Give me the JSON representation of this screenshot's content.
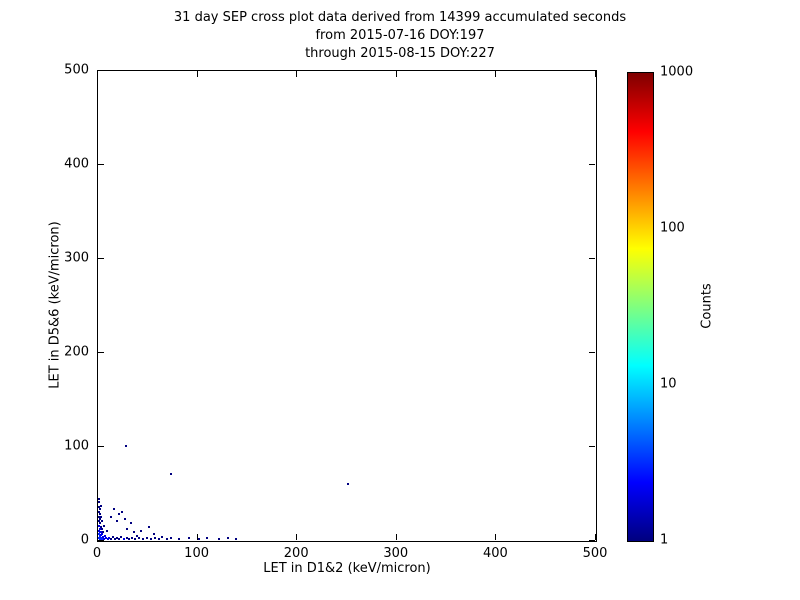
{
  "chart_data": {
    "type": "scatter",
    "titles": [
      "31 day SEP cross plot data derived from 14399 accumulated seconds",
      "from 2015-07-16 DOY:197",
      "through 2015-08-15 DOY:227"
    ],
    "xlabel": "LET in D1&2 (keV/micron)",
    "ylabel": "LET in D5&6 (keV/micron)",
    "xlim": [
      0,
      500
    ],
    "ylim": [
      0,
      500
    ],
    "x_ticks": [
      0,
      100,
      200,
      300,
      400,
      500
    ],
    "y_ticks": [
      0,
      100,
      200,
      300,
      400,
      500
    ],
    "grid": false,
    "legend": "none",
    "colorbar": {
      "label": "Counts",
      "scale": "log",
      "min": 1,
      "max": 1000,
      "ticks": [
        1000,
        100,
        10,
        1
      ],
      "colormap": "jet",
      "stops": [
        {
          "pos": 0.0,
          "color": "#00007f"
        },
        {
          "pos": 0.125,
          "color": "#0000ff"
        },
        {
          "pos": 0.375,
          "color": "#00ffff"
        },
        {
          "pos": 0.625,
          "color": "#ffff00"
        },
        {
          "pos": 0.875,
          "color": "#ff0000"
        },
        {
          "pos": 1.0,
          "color": "#7f0000"
        }
      ]
    },
    "points": [
      [
        0,
        2,
        3
      ],
      [
        0,
        6,
        3
      ],
      [
        0,
        10,
        2
      ],
      [
        0,
        15,
        2
      ],
      [
        0,
        20,
        1
      ],
      [
        0,
        25,
        1
      ],
      [
        0,
        30,
        1
      ],
      [
        0,
        35,
        1
      ],
      [
        0,
        40,
        1
      ],
      [
        0,
        44,
        1
      ],
      [
        1,
        1,
        3
      ],
      [
        1,
        4,
        3
      ],
      [
        1,
        8,
        2
      ],
      [
        1,
        12,
        2
      ],
      [
        1,
        18,
        1
      ],
      [
        1,
        22,
        1
      ],
      [
        1,
        28,
        1
      ],
      [
        1,
        33,
        1
      ],
      [
        2,
        2,
        3
      ],
      [
        2,
        5,
        2
      ],
      [
        2,
        9,
        2
      ],
      [
        2,
        14,
        1
      ],
      [
        2,
        24,
        1
      ],
      [
        2,
        36,
        1
      ],
      [
        3,
        1,
        3
      ],
      [
        3,
        6,
        2
      ],
      [
        3,
        12,
        1
      ],
      [
        3,
        20,
        1
      ],
      [
        4,
        3,
        2
      ],
      [
        4,
        8,
        1
      ],
      [
        5,
        1,
        2
      ],
      [
        5,
        15,
        1
      ],
      [
        6,
        4,
        2
      ],
      [
        7,
        2,
        2
      ],
      [
        8,
        10,
        1
      ],
      [
        9,
        1,
        2
      ],
      [
        10,
        2,
        2
      ],
      [
        12,
        1,
        1
      ],
      [
        14,
        3,
        1
      ],
      [
        16,
        1,
        1
      ],
      [
        18,
        2,
        1
      ],
      [
        20,
        1,
        1
      ],
      [
        22,
        3,
        1
      ],
      [
        25,
        1,
        2
      ],
      [
        28,
        2,
        1
      ],
      [
        30,
        1,
        1
      ],
      [
        33,
        2,
        1
      ],
      [
        36,
        1,
        1
      ],
      [
        38,
        4,
        1
      ],
      [
        40,
        2,
        1
      ],
      [
        44,
        1,
        1
      ],
      [
        48,
        2,
        1
      ],
      [
        52,
        1,
        1
      ],
      [
        56,
        2,
        1
      ],
      [
        60,
        1,
        1
      ],
      [
        63,
        3,
        1
      ],
      [
        68,
        1,
        1
      ],
      [
        72,
        2,
        1
      ],
      [
        80,
        1,
        1
      ],
      [
        90,
        2,
        1
      ],
      [
        100,
        1,
        1
      ],
      [
        108,
        2,
        1
      ],
      [
        120,
        1,
        1
      ],
      [
        130,
        2,
        1
      ],
      [
        138,
        1,
        1
      ],
      [
        12,
        25,
        1
      ],
      [
        15,
        33,
        1
      ],
      [
        18,
        20,
        1
      ],
      [
        20,
        28,
        1
      ],
      [
        23,
        30,
        1
      ],
      [
        26,
        22,
        1
      ],
      [
        28,
        12,
        1
      ],
      [
        32,
        18,
        1
      ],
      [
        35,
        8,
        1
      ],
      [
        42,
        10,
        1
      ],
      [
        50,
        14,
        1
      ],
      [
        55,
        6,
        1
      ],
      [
        27,
        100,
        1
      ],
      [
        72,
        70,
        1
      ],
      [
        250,
        60,
        1
      ]
    ]
  }
}
